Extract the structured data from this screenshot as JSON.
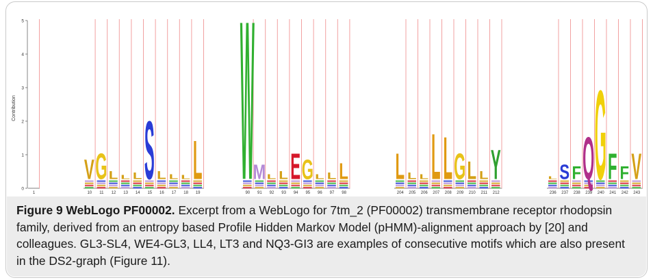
{
  "figure": {
    "title": "Figure 9 WebLogo PF00002.",
    "caption": " Excerpt from a WebLogo for 7tm_2 (PF00002) transmembrane receptor rhodopsin family, derived from an entropy based Profile Hidden Markov Model (pHMM)-alignment approach by [20] and colleagues. GL3-SL4, WE4-GL3, LL4, LT3 and NQ3-GI3 are examples of consecutive motifs which are also present in the DS2-graph (Figure 11)."
  },
  "chart_data": {
    "type": "sequence-logo",
    "ylabel": "Contribution",
    "ylim": [
      0,
      5
    ],
    "y_ticks": [
      "0",
      "1",
      "2",
      "3",
      "4",
      "5"
    ],
    "segments": [
      {
        "positions": [
          {
            "label": "1",
            "stack": []
          }
        ]
      },
      {
        "positions": [
          {
            "label": "10",
            "stack": [
              {
                "letter": "V",
                "height": 0.6,
                "color": "#d4a017"
              }
            ]
          },
          {
            "label": "11",
            "stack": [
              {
                "letter": "G",
                "height": 0.8,
                "color": "#e8c21a"
              }
            ]
          },
          {
            "label": "12",
            "stack": [
              {
                "letter": "L",
                "height": 0.25,
                "color": "#d4a017"
              }
            ]
          },
          {
            "label": "13",
            "stack": [
              {
                "letter": "L",
                "height": 0.12,
                "color": "#d4a017"
              }
            ]
          },
          {
            "label": "14",
            "stack": [
              {
                "letter": "L",
                "height": 0.2,
                "color": "#d4a017"
              }
            ]
          },
          {
            "label": "15",
            "stack": [
              {
                "letter": "S",
                "height": 1.8,
                "color": "#2a3cd6"
              }
            ]
          },
          {
            "label": "16",
            "stack": [
              {
                "letter": "L",
                "height": 0.25,
                "color": "#d4a017"
              }
            ]
          },
          {
            "label": "17",
            "stack": [
              {
                "letter": "L",
                "height": 0.15,
                "color": "#d4a017"
              }
            ]
          },
          {
            "label": "18",
            "stack": [
              {
                "letter": "L",
                "height": 0.12,
                "color": "#d4a017"
              }
            ]
          },
          {
            "label": "19",
            "stack": [
              {
                "letter": "L",
                "height": 1.2,
                "color": "#e09a12"
              }
            ]
          }
        ]
      },
      {
        "positions": [
          {
            "label": "90",
            "stack": [
              {
                "letter": "W",
                "height": 4.9,
                "color": "#30b030"
              }
            ]
          },
          {
            "label": "91",
            "stack": [
              {
                "letter": "M",
                "height": 0.45,
                "color": "#b48ad6"
              }
            ]
          },
          {
            "label": "92",
            "stack": [
              {
                "letter": "L",
                "height": 0.15,
                "color": "#d4a017"
              }
            ]
          },
          {
            "label": "93",
            "stack": [
              {
                "letter": "L",
                "height": 0.25,
                "color": "#d4a017"
              }
            ]
          },
          {
            "label": "94",
            "stack": [
              {
                "letter": "E",
                "height": 0.8,
                "color": "#d6182a"
              }
            ]
          },
          {
            "label": "95",
            "stack": [
              {
                "letter": "G",
                "height": 0.6,
                "color": "#e8c21a"
              }
            ]
          },
          {
            "label": "96",
            "stack": [
              {
                "letter": "L",
                "height": 0.15,
                "color": "#d4a017"
              }
            ]
          },
          {
            "label": "97",
            "stack": [
              {
                "letter": "L",
                "height": 0.2,
                "color": "#d4a017"
              }
            ]
          },
          {
            "label": "98",
            "stack": [
              {
                "letter": "L",
                "height": 0.5,
                "color": "#e09a12"
              }
            ]
          }
        ]
      },
      {
        "positions": [
          {
            "label": "204",
            "stack": [
              {
                "letter": "L",
                "height": 0.8,
                "color": "#e09a12"
              }
            ]
          },
          {
            "label": "205",
            "stack": [
              {
                "letter": "L",
                "height": 0.2,
                "color": "#d4a017"
              }
            ]
          },
          {
            "label": "206",
            "stack": [
              {
                "letter": "L",
                "height": 0.15,
                "color": "#d4a017"
              }
            ]
          },
          {
            "label": "207",
            "stack": [
              {
                "letter": "L",
                "height": 1.4,
                "color": "#e09a12"
              }
            ]
          },
          {
            "label": "208",
            "stack": [
              {
                "letter": "L",
                "height": 1.3,
                "color": "#e09a12"
              }
            ]
          },
          {
            "label": "209",
            "stack": [
              {
                "letter": "G",
                "height": 0.8,
                "color": "#e8c21a"
              }
            ]
          },
          {
            "label": "210",
            "stack": [
              {
                "letter": "L",
                "height": 0.55,
                "color": "#d4a017"
              }
            ]
          },
          {
            "label": "211",
            "stack": [
              {
                "letter": "L",
                "height": 0.25,
                "color": "#d4a017"
              }
            ]
          },
          {
            "label": "212",
            "stack": [
              {
                "letter": "Y",
                "height": 0.9,
                "color": "#30a030"
              }
            ]
          }
        ]
      },
      {
        "positions": [
          {
            "label": "236",
            "stack": [
              {
                "letter": "L",
                "height": 0.08,
                "color": "#d4a017"
              }
            ]
          },
          {
            "label": "237",
            "stack": [
              {
                "letter": "S",
                "height": 0.45,
                "color": "#2a3cd6"
              }
            ]
          },
          {
            "label": "238",
            "stack": [
              {
                "letter": "F",
                "height": 0.4,
                "color": "#30b030"
              }
            ]
          },
          {
            "label": "239",
            "stack": [
              {
                "letter": "Q",
                "height": 1.3,
                "color": "#b0308a"
              }
            ]
          },
          {
            "label": "240",
            "stack": [
              {
                "letter": "G",
                "height": 2.75,
                "color": "#f0d00a"
              }
            ]
          },
          {
            "label": "241",
            "stack": [
              {
                "letter": "F",
                "height": 0.8,
                "color": "#30b030"
              }
            ]
          },
          {
            "label": "242",
            "stack": [
              {
                "letter": "F",
                "height": 0.4,
                "color": "#30b030"
              }
            ]
          },
          {
            "label": "243",
            "stack": [
              {
                "letter": "V",
                "height": 0.8,
                "color": "#d4a017"
              }
            ]
          }
        ]
      }
    ]
  }
}
